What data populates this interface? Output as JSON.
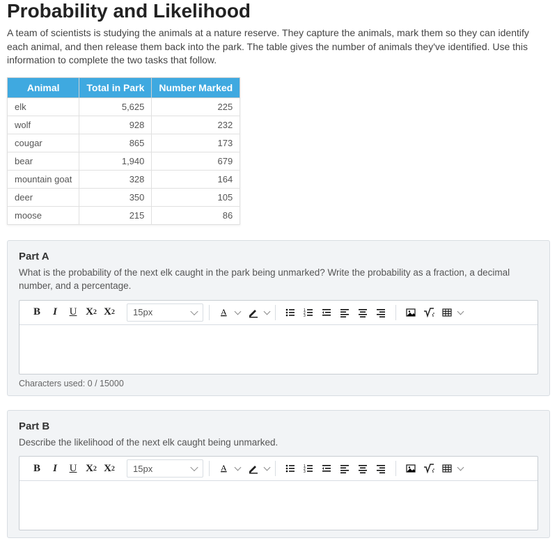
{
  "page_title": "Probability and Likelihood",
  "intro_text": "A team of scientists is studying the animals at a nature reserve. They capture the animals, mark them so they can identify each animal, and then release them back into the park. The table gives the number of animals they've identified. Use this information to complete the two tasks that follow.",
  "table": {
    "header_bg": "#3fa9e0",
    "header_fg": "#ffffff",
    "border_color": "#e0e0e0",
    "columns": [
      "Animal",
      "Total in Park",
      "Number Marked"
    ],
    "rows": [
      [
        "elk",
        "5,625",
        "225"
      ],
      [
        "wolf",
        "928",
        "232"
      ],
      [
        "cougar",
        "865",
        "173"
      ],
      [
        "bear",
        "1,940",
        "679"
      ],
      [
        "mountain goat",
        "328",
        "164"
      ],
      [
        "deer",
        "350",
        "105"
      ],
      [
        "moose",
        "215",
        "86"
      ]
    ]
  },
  "part_a": {
    "title": "Part A",
    "prompt": "What is the probability of the next elk caught in the park being unmarked? Write the probability as a fraction, a decimal number, and a percentage.",
    "char_count": "Characters used: 0 / 15000"
  },
  "part_b": {
    "title": "Part B",
    "prompt": "Describe the likelihood of the next elk caught being unmarked."
  },
  "toolbar": {
    "font_size": "15px",
    "icons": {
      "bold": "bold-icon",
      "italic": "italic-icon",
      "underline": "underline-icon",
      "superscript": "superscript-icon",
      "subscript": "subscript-icon",
      "font_color": "font-color-icon",
      "highlight": "highlight-icon",
      "ul": "bullet-list-icon",
      "ol": "number-list-icon",
      "outdent": "outdent-icon",
      "align_left": "align-left-icon",
      "align_center": "align-center-icon",
      "align_right": "align-right-icon",
      "image": "image-icon",
      "math": "math-icon",
      "table": "table-icon"
    }
  }
}
